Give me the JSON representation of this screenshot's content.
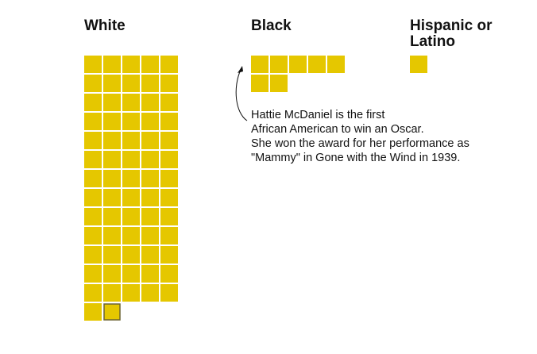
{
  "chart_data": {
    "type": "waffle",
    "unit": "one square per award winner",
    "columns_per_row": 5,
    "groups": [
      {
        "key": "white",
        "label": "White",
        "count": 67,
        "highlighted_index": 66
      },
      {
        "key": "black",
        "label": "Black",
        "count": 7,
        "highlighted_index": null
      },
      {
        "key": "hispanic",
        "label": "Hispanic or Latino",
        "count": 1,
        "highlighted_index": null
      }
    ],
    "annotation": {
      "target_group": "black",
      "target_index": 0,
      "lines": [
        "Hattie McDaniel is the first",
        "African American to win an Oscar.",
        "She won the award for her performance as",
        "\"Mammy\" in Gone with the Wind in 1939."
      ]
    }
  },
  "colors": {
    "fill": "#e5c700",
    "cell_border": "#ffffff",
    "highlight_border": "#6b6433",
    "text": "#111111"
  }
}
